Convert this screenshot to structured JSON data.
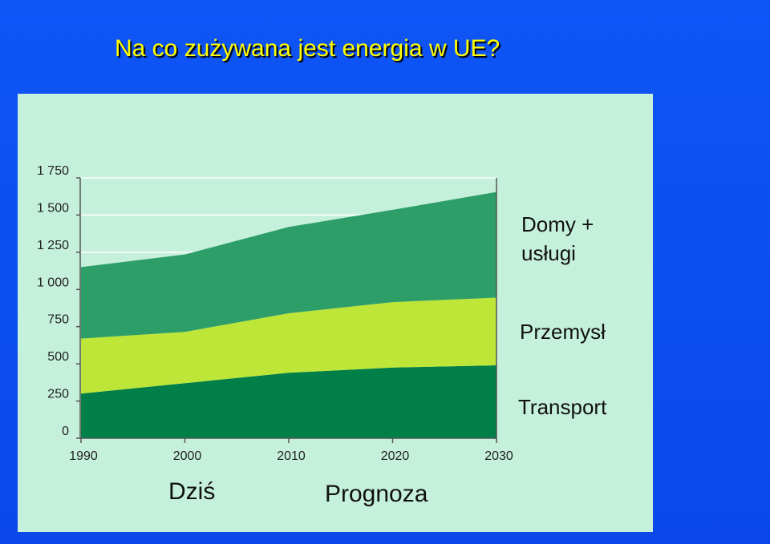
{
  "slide": {
    "title": "Na co zużywana jest energia w UE?",
    "label_today": "Dziś",
    "label_forecast": "Prognoza"
  },
  "colors": {
    "background": "#0b4ff2",
    "title": "#ffff00",
    "panel": "#c5f0dc",
    "homes_services": "#2e9e69",
    "industry": "#bde639",
    "transport": "#008048"
  },
  "chart_data": {
    "type": "area",
    "stacked": true,
    "x": [
      1990,
      2000,
      2010,
      2020,
      2030
    ],
    "ylim": [
      0,
      1750
    ],
    "xlim": [
      1990,
      2030
    ],
    "y_ticks": [
      "0",
      "250",
      "500",
      "750",
      "1 000",
      "1 250",
      "1 500",
      "1 750"
    ],
    "y_tick_values": [
      0,
      250,
      500,
      750,
      1000,
      1250,
      1500,
      1750
    ],
    "x_ticks": [
      "1990",
      "2000",
      "2010",
      "2020",
      "2030"
    ],
    "grid": true,
    "legend": "right, area labels",
    "series": [
      {
        "name": "Transport",
        "values": [
          300,
          370,
          440,
          475,
          490
        ]
      },
      {
        "name": "Przemysł",
        "values": [
          370,
          345,
          400,
          440,
          455
        ]
      },
      {
        "name": "Domy + usługi",
        "values": [
          480,
          520,
          580,
          620,
          710
        ]
      }
    ]
  },
  "labels": {
    "homes_services_line1": "Domy +",
    "homes_services_line2": "usługi",
    "industry": "Przemysł",
    "transport": "Transport"
  }
}
